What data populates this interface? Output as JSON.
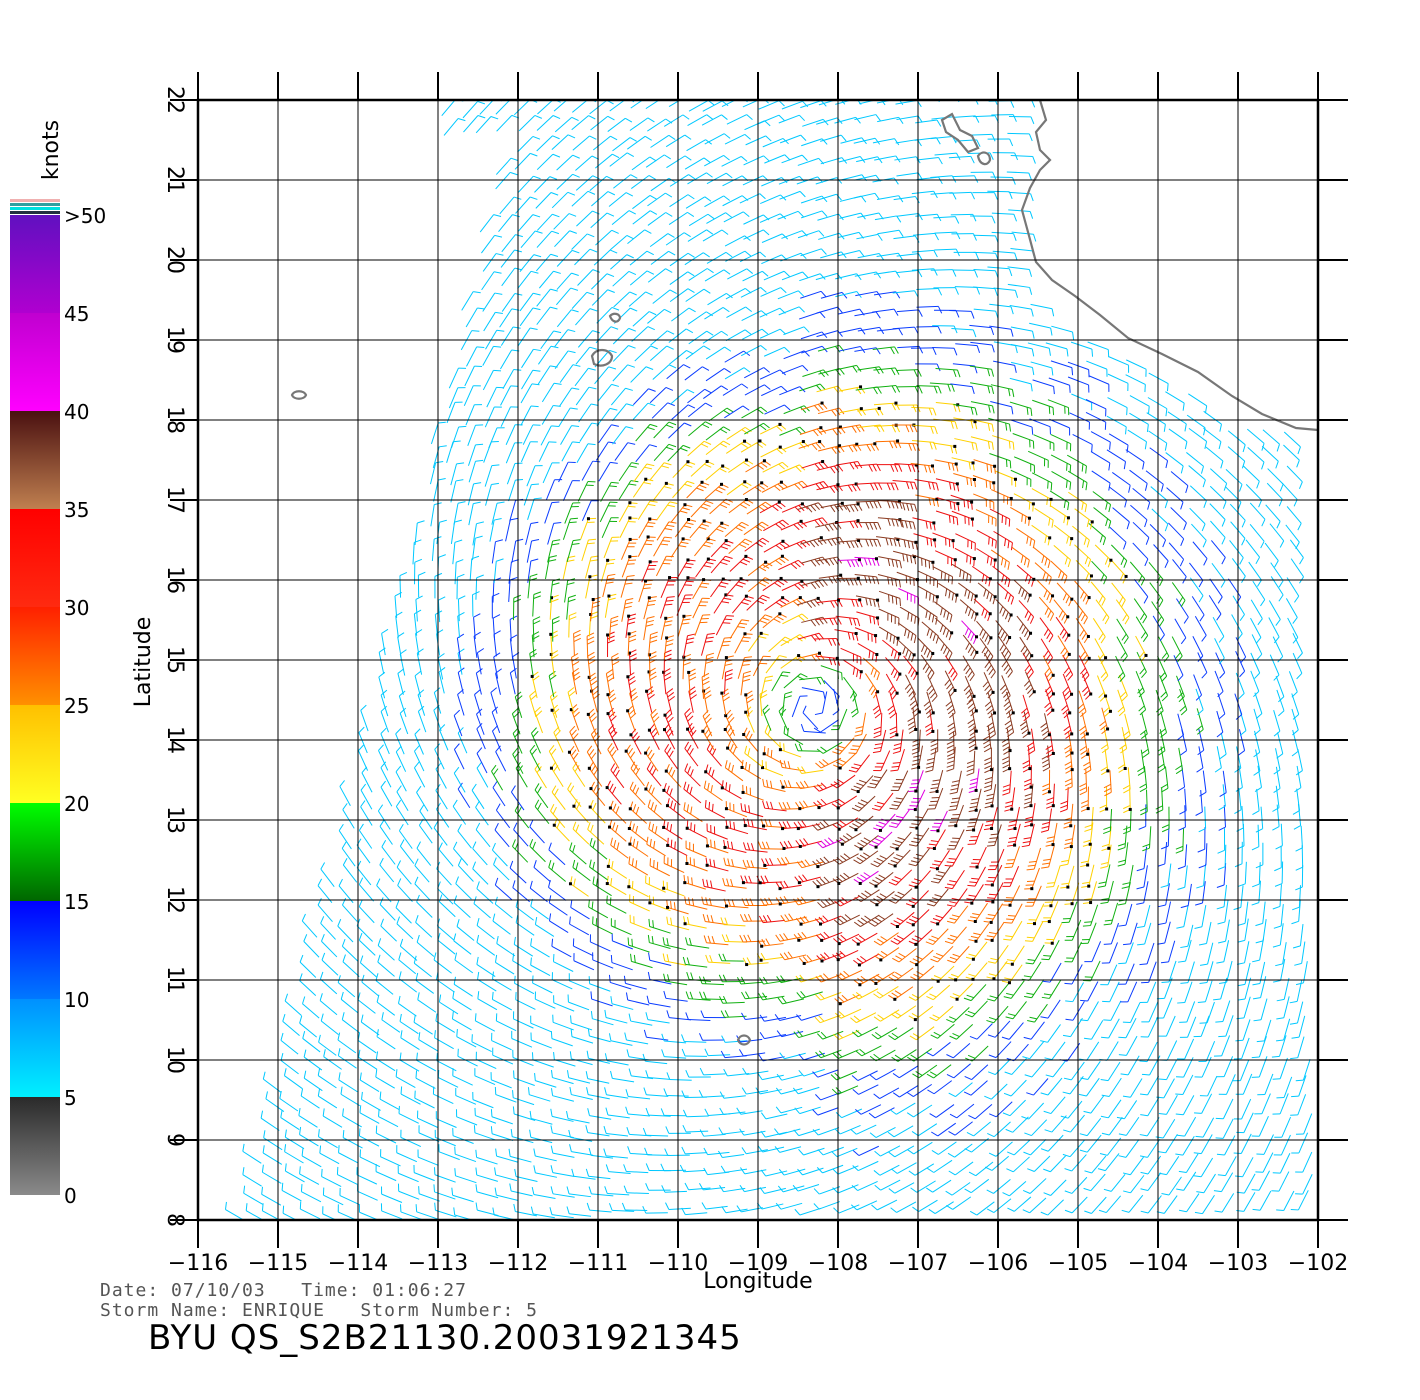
{
  "map": {
    "xlabel": "Longitude",
    "ylabel": "Latitude",
    "lon_range": [
      -116,
      -102
    ],
    "lat_range": [
      8,
      22
    ],
    "lon_ticks": [
      -116,
      -115,
      -114,
      -113,
      -112,
      -111,
      -110,
      -109,
      -108,
      -107,
      -106,
      -105,
      -104,
      -103,
      -102
    ],
    "lat_ticks": [
      8,
      9,
      10,
      11,
      12,
      13,
      14,
      15,
      16,
      17,
      18,
      19,
      20,
      21,
      22
    ],
    "storm_center": {
      "lon": -108.3,
      "lat": 14.4
    },
    "grid": true
  },
  "legend": {
    "title": "knots",
    "labels": [
      "0",
      "5",
      "10",
      "15",
      "20",
      "25",
      "30",
      "35",
      "40",
      "45",
      ">50"
    ],
    "bands": [
      {
        "range": "0-5",
        "from": "#8a8a8a",
        "to": "#2a2a2a"
      },
      {
        "range": "5-10",
        "from": "#00f0ff",
        "to": "#0090ff"
      },
      {
        "range": "10-15",
        "from": "#0078ff",
        "to": "#0000ff"
      },
      {
        "range": "15-20",
        "from": "#006600",
        "to": "#00ff00"
      },
      {
        "range": "20-25",
        "from": "#ffff22",
        "to": "#ffc000"
      },
      {
        "range": "25-30",
        "from": "#ff9000",
        "to": "#ff2000"
      },
      {
        "range": "30-35",
        "from": "#ff2a10",
        "to": "#ff0000"
      },
      {
        "range": "35-40",
        "from": "#c08050",
        "to": "#4a1010"
      },
      {
        "range": "40-45",
        "from": "#ff00ff",
        "to": "#c000d0"
      },
      {
        "range": "45-50",
        "from": "#b000d0",
        "to": "#6010c0"
      }
    ]
  },
  "footer": {
    "date_line": "Date: 07/10/03   Time: 01:06:27",
    "storm_line": "Storm Name: ENRIQUE   Storm Number: 5",
    "product_id": "BYU QS_S2B21130.20031921345"
  }
}
